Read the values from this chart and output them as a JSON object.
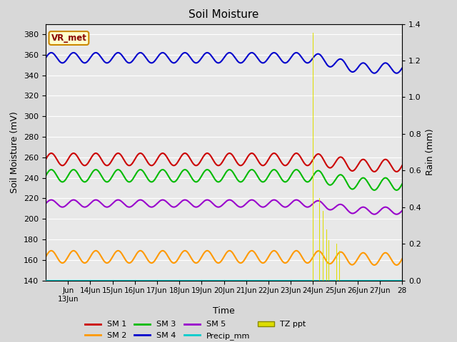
{
  "title": "Soil Moisture",
  "ylabel_left": "Soil Moisture (mV)",
  "ylabel_right": "Rain (mm)",
  "xlabel": "Time",
  "ylim_left": [
    140,
    390
  ],
  "ylim_right": [
    0.0,
    1.4
  ],
  "yticks_left": [
    140,
    160,
    180,
    200,
    220,
    240,
    260,
    280,
    300,
    320,
    340,
    360,
    380
  ],
  "yticks_right": [
    0.0,
    0.2,
    0.4,
    0.6,
    0.8,
    1.0,
    1.2,
    1.4
  ],
  "sm1_base": 258,
  "sm1_amp": 6,
  "sm1_drift": -6,
  "sm1_color": "#cc0000",
  "sm2_base": 163,
  "sm2_amp": 6,
  "sm2_drift": -2,
  "sm2_color": "#ff9900",
  "sm3_base": 242,
  "sm3_amp": 6,
  "sm3_drift": -8,
  "sm3_color": "#00bb00",
  "sm4_base": 357,
  "sm4_amp": 5,
  "sm4_drift": -10,
  "sm4_color": "#0000cc",
  "sm5_base": 215,
  "sm5_amp": 3.5,
  "sm5_drift": -7,
  "sm5_color": "#9900cc",
  "precip_color": "#00cccc",
  "tz_ppt_color": "#dddd00",
  "tz_ppt_times": [
    12.0,
    12.15,
    12.3,
    12.45,
    12.6,
    12.72,
    12.85,
    13.05,
    13.2
  ],
  "tz_ppt_vals": [
    1.35,
    0.55,
    0.45,
    0.38,
    0.28,
    0.22,
    0.18,
    0.2,
    0.16
  ],
  "background_color": "#e8e8e8",
  "grid_color": "#ffffff",
  "vr_met_text": "VR_met",
  "vr_met_bg": "#ffffcc",
  "vr_met_border": "#cc8800",
  "vr_met_text_color": "#880000",
  "fig_width": 6.4,
  "fig_height": 4.8,
  "dpi": 100
}
